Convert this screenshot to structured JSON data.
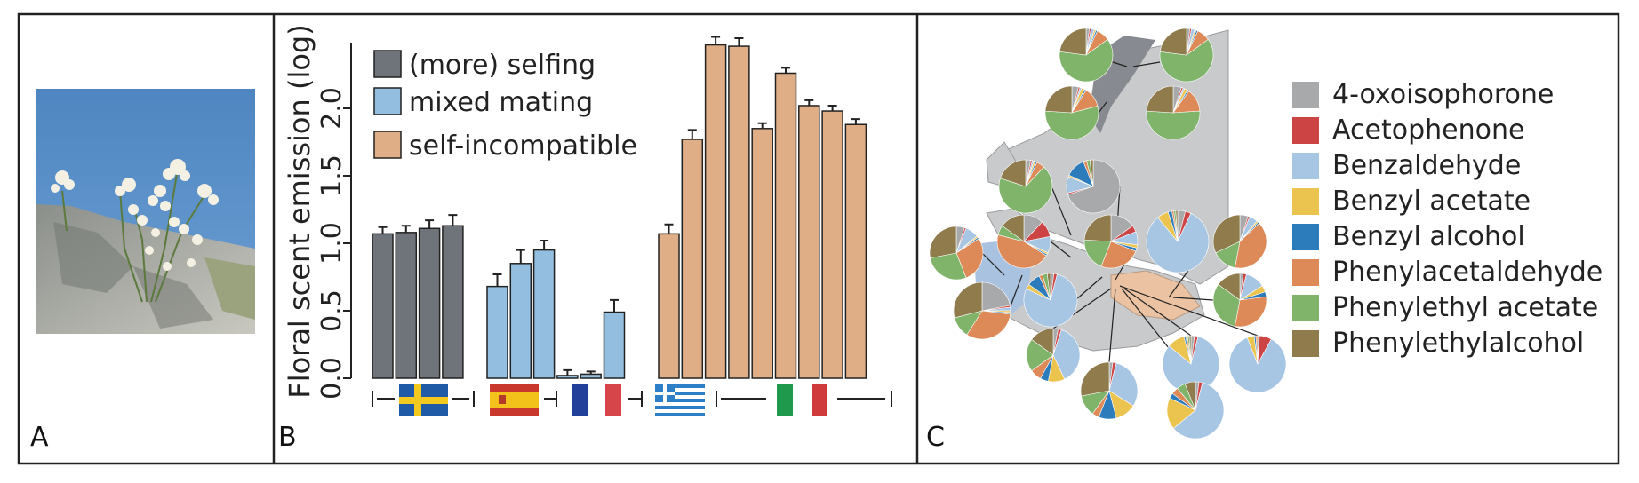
{
  "panels": [
    {
      "label": "A"
    },
    {
      "label": "B"
    },
    {
      "label": "C"
    }
  ],
  "chart_data": [
    {
      "type": "bar",
      "ylabel": "Floral scent emission (log)",
      "ylim": [
        0,
        2.5
      ],
      "yticks": [
        "0.0",
        "0.5",
        "1.0",
        "1.5",
        "2.0"
      ],
      "legend": [
        {
          "label": "(more) selfing",
          "color": "#6e747a"
        },
        {
          "label": "mixed mating",
          "color": "#94bedf"
        },
        {
          "label": "self-incompatible",
          "color": "#dfad86"
        }
      ],
      "bars": [
        {
          "value": 1.07,
          "err": 0.05,
          "group": 0
        },
        {
          "value": 1.08,
          "err": 0.05,
          "group": 0
        },
        {
          "value": 1.11,
          "err": 0.06,
          "group": 0
        },
        {
          "value": 1.13,
          "err": 0.08,
          "group": 0
        },
        {
          "value": 0.68,
          "err": 0.09,
          "group": 1
        },
        {
          "value": 0.85,
          "err": 0.1,
          "group": 1
        },
        {
          "value": 0.95,
          "err": 0.07,
          "group": 1
        },
        {
          "value": 0.02,
          "err": 0.04,
          "group": 1
        },
        {
          "value": 0.03,
          "err": 0.02,
          "group": 1
        },
        {
          "value": 0.49,
          "err": 0.09,
          "group": 1
        },
        {
          "value": 1.07,
          "err": 0.07,
          "group": 2
        },
        {
          "value": 1.77,
          "err": 0.07,
          "group": 2
        },
        {
          "value": 2.47,
          "err": 0.06,
          "group": 2
        },
        {
          "value": 2.46,
          "err": 0.06,
          "group": 2
        },
        {
          "value": 1.85,
          "err": 0.04,
          "group": 2
        },
        {
          "value": 2.26,
          "err": 0.04,
          "group": 2
        },
        {
          "value": 2.02,
          "err": 0.04,
          "group": 2
        },
        {
          "value": 1.98,
          "err": 0.04,
          "group": 2
        },
        {
          "value": 1.88,
          "err": 0.04,
          "group": 2
        }
      ],
      "country_flags": [
        "Sweden",
        "Spain",
        "France",
        "Greece",
        "Italy"
      ]
    },
    {
      "type": "pie",
      "legend": [
        {
          "label": "4-oxoisophorone",
          "color": "#a8a9ab"
        },
        {
          "label": "Acetophenone",
          "color": "#cd4444"
        },
        {
          "label": "Benzaldehyde",
          "color": "#a7c6e4"
        },
        {
          "label": "Benzyl acetate",
          "color": "#ebc34f"
        },
        {
          "label": "Benzyl alcohol",
          "color": "#2c7cbc"
        },
        {
          "label": "Phenylacetaldehyde",
          "color": "#de8a58"
        },
        {
          "label": "Phenylethyl acetate",
          "color": "#7fb46a"
        },
        {
          "label": "Phenylethylalcohol",
          "color": "#8f7b4c"
        }
      ],
      "pies": [
        [
          0.02,
          0.01,
          0.02,
          0.01,
          0.01,
          0.08,
          0.62,
          0.23
        ],
        [
          0.02,
          0.01,
          0.02,
          0.01,
          0.01,
          0.08,
          0.62,
          0.23
        ],
        [
          0.04,
          0.01,
          0.01,
          0.02,
          0.01,
          0.12,
          0.55,
          0.24
        ],
        [
          0.05,
          0.01,
          0.01,
          0.02,
          0.01,
          0.14,
          0.52,
          0.24
        ],
        [
          0.03,
          0.01,
          0.01,
          0.01,
          0.01,
          0.05,
          0.68,
          0.2
        ],
        [
          0.7,
          0.01,
          0.1,
          0.01,
          0.12,
          0.02,
          0.02,
          0.02
        ],
        [
          0.05,
          0.01,
          0.08,
          0.01,
          0.01,
          0.28,
          0.28,
          0.28
        ],
        [
          0.12,
          0.1,
          0.1,
          0.01,
          0.01,
          0.45,
          0.06,
          0.15
        ],
        [
          0.15,
          0.04,
          0.08,
          0.02,
          0.02,
          0.25,
          0.2,
          0.24
        ],
        [
          0.04,
          0.03,
          0.82,
          0.06,
          0.02,
          0.01,
          0.01,
          0.01
        ],
        [
          0.05,
          0.01,
          0.05,
          0.01,
          0.01,
          0.4,
          0.15,
          0.32
        ],
        [
          0.22,
          0.01,
          0.02,
          0.01,
          0.01,
          0.32,
          0.12,
          0.29
        ],
        [
          0.02,
          0.02,
          0.78,
          0.03,
          0.08,
          0.02,
          0.03,
          0.02
        ],
        [
          0.02,
          0.02,
          0.12,
          0.04,
          0.03,
          0.3,
          0.32,
          0.15
        ],
        [
          0.03,
          0.02,
          0.38,
          0.1,
          0.05,
          0.07,
          0.2,
          0.15
        ],
        [
          0.02,
          0.02,
          0.3,
          0.12,
          0.1,
          0.04,
          0.12,
          0.28
        ],
        [
          0.02,
          0.02,
          0.82,
          0.1,
          0.01,
          0.01,
          0.01,
          0.01
        ],
        [
          0.01,
          0.07,
          0.86,
          0.04,
          0.01,
          0.01,
          0.0,
          0.0
        ],
        [
          0.02,
          0.02,
          0.6,
          0.18,
          0.03,
          0.04,
          0.05,
          0.06
        ]
      ]
    }
  ]
}
